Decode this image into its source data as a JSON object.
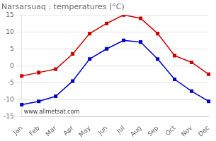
{
  "chart_data": {
    "type": "line",
    "title": "Narsarsuaq : temperatures (°C)",
    "categories": [
      "Jan",
      "Feb",
      "Mar",
      "Apr",
      "May",
      "Jun",
      "Jul",
      "Aug",
      "Sep",
      "Oct",
      "Nov",
      "Dec"
    ],
    "series": [
      {
        "color": "#cc0000",
        "marker": "square",
        "line_style": "solid",
        "values": [
          -3.0,
          -2.0,
          -1.0,
          3.5,
          9.5,
          12.5,
          15.0,
          14.0,
          9.5,
          3.0,
          1.0,
          -2.5
        ]
      },
      {
        "color": "#0000cc",
        "marker": "square",
        "line_style": "solid",
        "values": [
          -11.5,
          -10.5,
          -9.0,
          -4.5,
          2.0,
          5.0,
          7.5,
          7.0,
          2.0,
          -4.0,
          -7.5,
          -10.5
        ]
      }
    ],
    "ylim": [
      -15,
      15
    ],
    "yticks": [
      -15,
      -10,
      -5,
      0,
      5,
      10,
      15
    ],
    "grid": true,
    "annotation": "www.allmetsat.com"
  }
}
